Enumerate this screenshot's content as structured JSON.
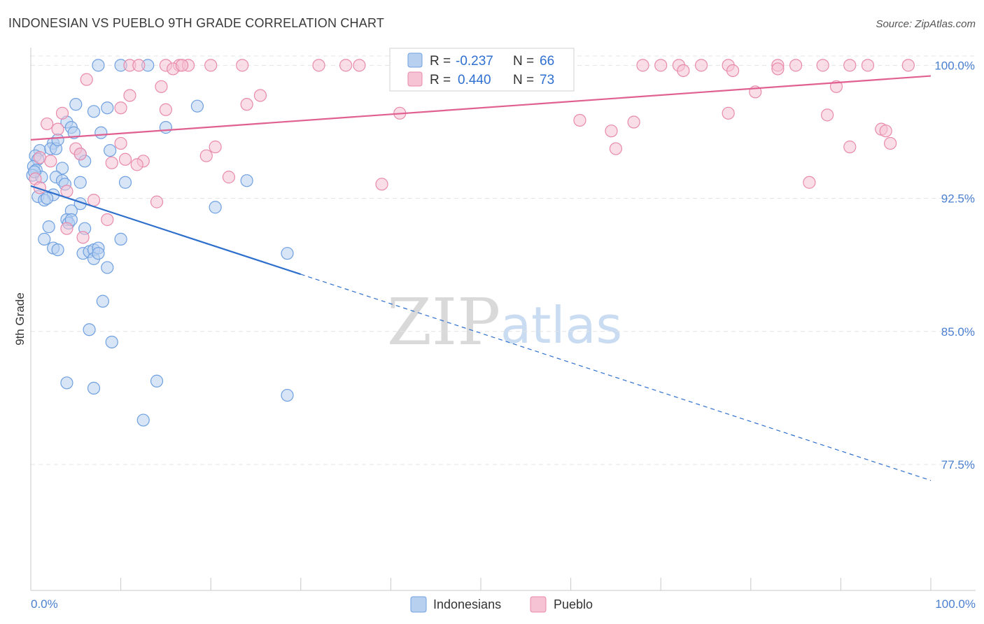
{
  "chart_data": {
    "type": "scatter",
    "title": "INDONESIAN VS PUEBLO 9TH GRADE CORRELATION CHART",
    "source": "Source: ZipAtlas.com",
    "ylabel": "9th Grade",
    "xlabel": "",
    "xlim": [
      0,
      100
    ],
    "ylim": [
      70.4,
      101.0
    ],
    "x_tick_labels": [
      "0.0%",
      "100.0%"
    ],
    "y_ticks": [
      {
        "value": 100.0,
        "label": "100.0%"
      },
      {
        "value": 92.5,
        "label": "92.5%"
      },
      {
        "value": 85.0,
        "label": "85.0%"
      },
      {
        "value": 77.5,
        "label": "77.5%"
      }
    ],
    "watermark": {
      "zip": "ZIP",
      "atlas": "atlas"
    },
    "legend": [
      {
        "series": "Indonesians",
        "r_label": "R =",
        "r_value": "-0.237",
        "n_label": "N =",
        "n_value": "66"
      },
      {
        "series": "Pueblo",
        "r_label": "R =",
        "r_value": "0.440",
        "n_label": "N =",
        "n_value": "73"
      }
    ],
    "series": [
      {
        "name": "Indonesians",
        "color": "#6fa0e0",
        "fill": "#b8d0f0",
        "trend_color": "#2f6fcc",
        "trend": {
          "x0": 0,
          "y0": 93.2,
          "x1": 100,
          "y1": 76.6,
          "solid_until_x": 30
        },
        "points": [
          [
            7.5,
            100.0
          ],
          [
            10.0,
            100.0
          ],
          [
            13.0,
            100.0
          ],
          [
            7.0,
            97.4
          ],
          [
            8.5,
            97.6
          ],
          [
            5.0,
            97.8
          ],
          [
            18.5,
            97.7
          ],
          [
            4.0,
            96.8
          ],
          [
            4.5,
            96.5
          ],
          [
            4.8,
            96.2
          ],
          [
            7.8,
            96.2
          ],
          [
            15.0,
            96.5
          ],
          [
            2.5,
            95.6
          ],
          [
            1.0,
            95.2
          ],
          [
            2.2,
            95.3
          ],
          [
            2.8,
            95.3
          ],
          [
            5.5,
            95.0
          ],
          [
            8.8,
            95.2
          ],
          [
            0.5,
            94.9
          ],
          [
            0.8,
            94.7
          ],
          [
            6.0,
            94.6
          ],
          [
            0.3,
            94.3
          ],
          [
            0.6,
            94.1
          ],
          [
            3.5,
            94.2
          ],
          [
            0.2,
            93.8
          ],
          [
            1.2,
            93.7
          ],
          [
            2.8,
            93.7
          ],
          [
            3.5,
            93.5
          ],
          [
            5.5,
            93.4
          ],
          [
            10.5,
            93.4
          ],
          [
            3.8,
            93.3
          ],
          [
            24.0,
            93.5
          ],
          [
            2.5,
            92.7
          ],
          [
            0.8,
            92.6
          ],
          [
            1.5,
            92.4
          ],
          [
            1.8,
            92.5
          ],
          [
            5.5,
            92.2
          ],
          [
            20.5,
            92.0
          ],
          [
            4.5,
            91.8
          ],
          [
            4.0,
            91.3
          ],
          [
            4.2,
            91.1
          ],
          [
            4.5,
            91.3
          ],
          [
            6.0,
            90.8
          ],
          [
            2.0,
            90.9
          ],
          [
            1.5,
            90.2
          ],
          [
            10.0,
            90.2
          ],
          [
            2.5,
            89.7
          ],
          [
            3.0,
            89.6
          ],
          [
            5.8,
            89.4
          ],
          [
            6.5,
            89.5
          ],
          [
            7.0,
            89.6
          ],
          [
            7.5,
            89.7
          ],
          [
            7.0,
            89.1
          ],
          [
            7.5,
            89.4
          ],
          [
            28.5,
            89.4
          ],
          [
            8.5,
            88.6
          ],
          [
            8.0,
            86.7
          ],
          [
            6.5,
            85.1
          ],
          [
            9.0,
            84.4
          ],
          [
            4.0,
            82.1
          ],
          [
            7.0,
            81.8
          ],
          [
            14.0,
            82.2
          ],
          [
            28.5,
            81.4
          ],
          [
            12.5,
            80.0
          ],
          [
            0.4,
            94.0
          ],
          [
            3.0,
            95.8
          ]
        ]
      },
      {
        "name": "Pueblo",
        "color": "#e88aac",
        "fill": "#f6c3d4",
        "trend_color": "#e06090",
        "trend": {
          "x0": 0,
          "y0": 95.8,
          "x1": 100,
          "y1": 99.4,
          "solid_until_x": 100
        },
        "points": [
          [
            11.0,
            100.0
          ],
          [
            12.0,
            100.0
          ],
          [
            15.0,
            100.0
          ],
          [
            16.5,
            100.0
          ],
          [
            17.5,
            100.0
          ],
          [
            20.0,
            100.0
          ],
          [
            23.5,
            100.0
          ],
          [
            32.0,
            100.0
          ],
          [
            35.0,
            100.0
          ],
          [
            36.5,
            100.0
          ],
          [
            47.0,
            100.0
          ],
          [
            48.0,
            100.0
          ],
          [
            68.0,
            100.0
          ],
          [
            70.0,
            100.0
          ],
          [
            72.0,
            100.0
          ],
          [
            74.5,
            100.0
          ],
          [
            77.5,
            100.0
          ],
          [
            83.0,
            100.0
          ],
          [
            85.0,
            100.0
          ],
          [
            88.0,
            100.0
          ],
          [
            91.0,
            100.0
          ],
          [
            93.0,
            100.0
          ],
          [
            97.5,
            100.0
          ],
          [
            15.8,
            99.8
          ],
          [
            16.8,
            100.0
          ],
          [
            72.5,
            99.7
          ],
          [
            78.0,
            99.7
          ],
          [
            83.0,
            99.8
          ],
          [
            6.2,
            99.2
          ],
          [
            14.5,
            98.8
          ],
          [
            11.0,
            98.3
          ],
          [
            25.5,
            98.3
          ],
          [
            24.0,
            97.8
          ],
          [
            10.0,
            97.6
          ],
          [
            15.0,
            97.5
          ],
          [
            80.5,
            98.5
          ],
          [
            89.5,
            98.8
          ],
          [
            3.5,
            97.3
          ],
          [
            41.0,
            97.3
          ],
          [
            77.5,
            97.3
          ],
          [
            88.5,
            97.2
          ],
          [
            61.0,
            96.9
          ],
          [
            64.5,
            96.3
          ],
          [
            67.0,
            96.8
          ],
          [
            1.8,
            96.7
          ],
          [
            3.0,
            96.4
          ],
          [
            94.5,
            96.4
          ],
          [
            95.0,
            96.3
          ],
          [
            95.5,
            95.6
          ],
          [
            10.0,
            95.6
          ],
          [
            20.5,
            95.4
          ],
          [
            65.0,
            95.3
          ],
          [
            5.0,
            95.3
          ],
          [
            5.5,
            95.0
          ],
          [
            19.5,
            94.9
          ],
          [
            2.2,
            94.6
          ],
          [
            1.0,
            94.8
          ],
          [
            10.5,
            94.7
          ],
          [
            12.5,
            94.6
          ],
          [
            11.8,
            94.4
          ],
          [
            9.0,
            94.5
          ],
          [
            22.0,
            93.7
          ],
          [
            0.5,
            93.6
          ],
          [
            39.0,
            93.3
          ],
          [
            1.0,
            93.1
          ],
          [
            4.0,
            92.9
          ],
          [
            14.0,
            92.3
          ],
          [
            7.0,
            92.4
          ],
          [
            8.5,
            91.3
          ],
          [
            86.5,
            93.4
          ],
          [
            4.0,
            90.8
          ],
          [
            5.8,
            90.3
          ],
          [
            91.0,
            95.4
          ]
        ]
      }
    ]
  }
}
